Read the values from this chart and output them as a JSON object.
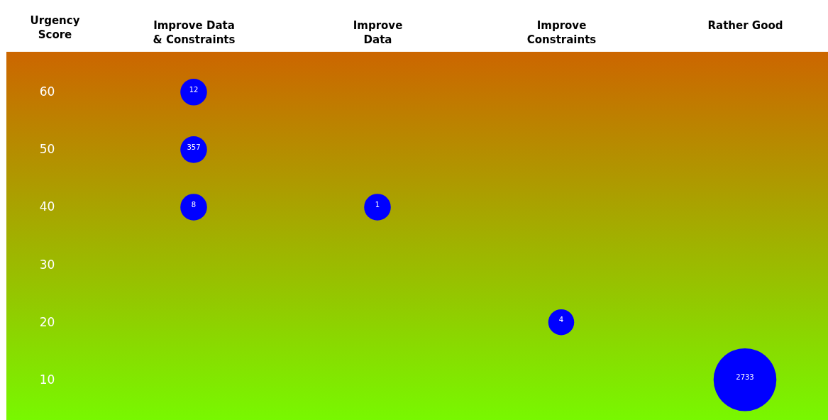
{
  "chart_data": {
    "type": "bubble",
    "ylabel": "Urgency\nScore",
    "categories": [
      "Improve Data\n& Constraints",
      "Improve\nData",
      "Improve\nConstraints",
      "Rather Good"
    ],
    "ylim": [
      3,
      67
    ],
    "yticks": [
      10,
      20,
      30,
      40,
      50,
      60
    ],
    "grid": false,
    "series": [
      {
        "color": "#0000ff",
        "x": [
          "Improve Data\n& Constraints",
          "Improve Data\n& Constraints",
          "Improve Data\n& Constraints",
          "Improve\nData",
          "Improve\nConstraints",
          "Rather Good"
        ],
        "values": [
          60,
          50,
          40,
          40,
          20,
          10
        ],
        "sizes": [
          0.18,
          0.18,
          0.18,
          0.18,
          0.17,
          1
        ]
      }
    ],
    "annotations": [
      {
        "text": "12",
        "x": "Improve Data\n& Constraints",
        "y": 60
      },
      {
        "text": "357",
        "x": "Improve Data\n& Constraints",
        "y": 50
      },
      {
        "text": "8",
        "x": "Improve Data\n& Constraints",
        "y": 40
      },
      {
        "text": "1",
        "x": "Improve\nData",
        "y": 40
      },
      {
        "text": "4",
        "x": "Improve\nConstraints",
        "y": 20
      },
      {
        "text": "2733",
        "x": "Rather Good",
        "y": 10
      }
    ]
  }
}
